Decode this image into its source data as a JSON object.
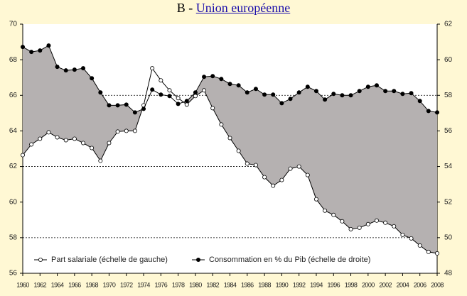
{
  "chart_data": {
    "type": "line",
    "title": "B - ",
    "title_link": "Union européenne",
    "x": [
      1960,
      1961,
      1962,
      1963,
      1964,
      1965,
      1966,
      1967,
      1968,
      1969,
      1970,
      1971,
      1972,
      1973,
      1974,
      1975,
      1976,
      1977,
      1978,
      1979,
      1980,
      1981,
      1982,
      1983,
      1984,
      1985,
      1986,
      1987,
      1988,
      1989,
      1990,
      1991,
      1992,
      1993,
      1994,
      1995,
      1996,
      1997,
      1998,
      1999,
      2000,
      2001,
      2002,
      2003,
      2004,
      2005,
      2006,
      2007,
      2008
    ],
    "xlim": [
      1960,
      2008
    ],
    "xticks": [
      1960,
      1962,
      1964,
      1966,
      1968,
      1970,
      1972,
      1974,
      1976,
      1978,
      1980,
      1982,
      1984,
      1986,
      1988,
      1990,
      1992,
      1994,
      1996,
      1998,
      2000,
      2002,
      2004,
      2006,
      2008
    ],
    "ylim": [
      56,
      70
    ],
    "yticks": [
      56,
      58,
      60,
      62,
      64,
      66,
      68,
      70
    ],
    "y2lim": [
      48,
      62
    ],
    "y2ticks": [
      48,
      50,
      52,
      54,
      56,
      58,
      60,
      62
    ],
    "ygrid": [
      58,
      62,
      66
    ],
    "fill_color": "#b5b1b1",
    "series": [
      {
        "name": "Part salariale (échelle de gauche)",
        "color": "#000000",
        "marker": "open",
        "axis": "y",
        "values": [
          62.64,
          63.24,
          63.56,
          63.92,
          63.64,
          63.48,
          63.56,
          63.32,
          63.04,
          62.32,
          63.32,
          63.96,
          64.0,
          64.0,
          65.44,
          67.52,
          66.84,
          66.28,
          65.84,
          65.48,
          65.96,
          66.28,
          65.28,
          64.36,
          63.6,
          62.88,
          62.16,
          62.08,
          61.4,
          60.92,
          61.24,
          61.88,
          62.0,
          61.52,
          60.16,
          59.52,
          59.28,
          58.92,
          58.48,
          58.56,
          58.76,
          58.96,
          58.84,
          58.64,
          58.16,
          57.96,
          57.56,
          57.2,
          57.12
        ]
      },
      {
        "name": "Consommation en % du Pib (échelle de droite)",
        "color": "#000000",
        "marker": "filled",
        "axis": "y2",
        "values": [
          60.72,
          60.44,
          60.52,
          60.8,
          59.6,
          59.4,
          59.44,
          59.52,
          58.96,
          58.16,
          57.44,
          57.44,
          57.48,
          57.04,
          57.24,
          58.32,
          58.04,
          57.96,
          57.52,
          57.68,
          58.16,
          59.04,
          59.08,
          58.92,
          58.64,
          58.56,
          58.16,
          58.36,
          58.04,
          58.04,
          57.56,
          57.8,
          58.16,
          58.48,
          58.24,
          57.76,
          58.08,
          58.0,
          58.0,
          58.24,
          58.48,
          58.56,
          58.24,
          58.24,
          58.08,
          58.12,
          57.68,
          57.12,
          57.04
        ]
      }
    ]
  }
}
